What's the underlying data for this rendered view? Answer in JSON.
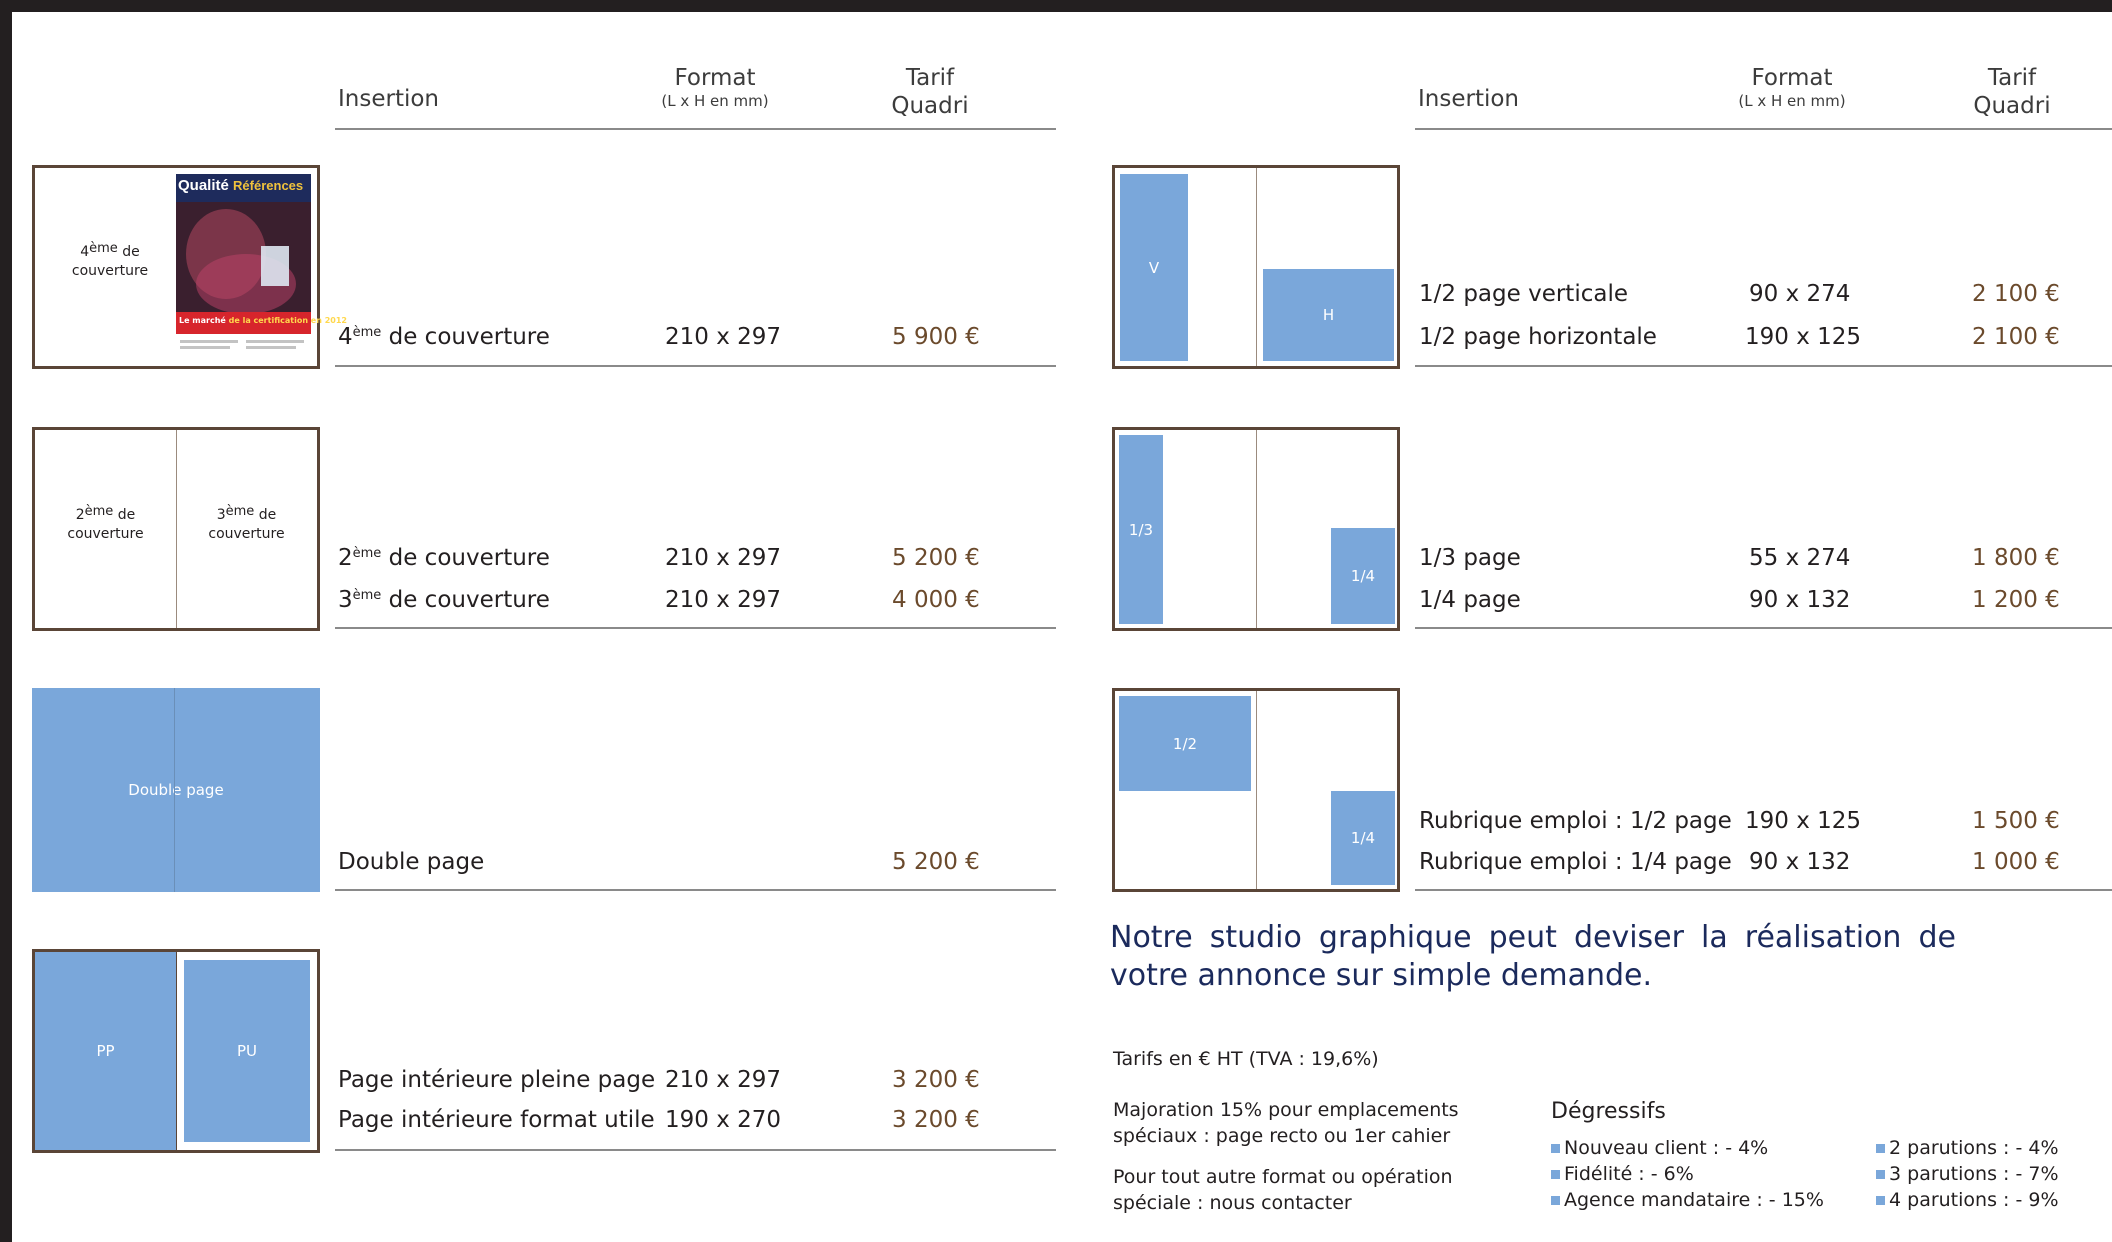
{
  "header_left": {
    "insertion": "Insertion",
    "format": "Format",
    "format_unit": "(L x H en mm)",
    "tarif1": "Tarif",
    "tarif2": "Quadri"
  },
  "header_right": {
    "insertion": "Insertion",
    "format": "Format",
    "format_unit": "(L x H en mm)",
    "tarif1": "Tarif",
    "tarif2": "Quadri"
  },
  "left_rows": {
    "r1": {
      "label_pre": "4",
      "label_sup": "ème",
      "label_post": " de couverture",
      "format": "210 x 297",
      "price": "5 900 €"
    },
    "r2a": {
      "label_pre": "2",
      "label_sup": "ème",
      "label_post": " de couverture",
      "format": "210 x 297",
      "price": "5 200 €"
    },
    "r2b": {
      "label_pre": "3",
      "label_sup": "ème",
      "label_post": " de couverture",
      "format": "210 x 297",
      "price": "4 000 €"
    },
    "r3": {
      "label": "Double page",
      "price": "5 200 €"
    },
    "r4a": {
      "label": "Page intérieure pleine page",
      "format": "210 x 297",
      "price": "3 200 €"
    },
    "r4b": {
      "label": "Page intérieure format utile",
      "format": "190 x 270",
      "price": "3 200 €"
    }
  },
  "right_rows": {
    "r1a": {
      "label": "1/2 page verticale",
      "format": "90 x 274",
      "price": "2 100 €"
    },
    "r1b": {
      "label": "1/2 page horizontale",
      "format": "190 x 125",
      "price": "2 100 €"
    },
    "r2a": {
      "label": "1/3 page",
      "format": "55 x 274",
      "price": "1 800 €"
    },
    "r2b": {
      "label": "1/4 page",
      "format": "90 x 132",
      "price": "1 200 €"
    },
    "r3a": {
      "label": "Rubrique emploi : 1/2 page",
      "format": "190 x 125",
      "price": "1 500 €"
    },
    "r3b": {
      "label": "Rubrique emploi : 1/4 page",
      "format": "90 x 132",
      "price": "1 000 €"
    }
  },
  "thumbs": {
    "cover4_pre": "4",
    "cover4_sup": "ème",
    "cover4_l1": " de",
    "cover4_l2": "couverture",
    "cover2_pre": "2",
    "cover2_sup": "ème",
    "cover2_l1": " de",
    "cover2_l2": "couverture",
    "cover3_pre": "3",
    "cover3_sup": "ème",
    "cover3_l1": " de",
    "cover3_l2": "couverture",
    "double": "Double page",
    "pp": "PP",
    "pu": "PU",
    "v": "V",
    "h": "H",
    "third": "1/3",
    "quarter": "1/4",
    "half": "1/2",
    "quarter2": "1/4"
  },
  "magazine": {
    "brand1": "Qualité",
    "brand2": "Références",
    "headline_a": "Le marché",
    "headline_b": " de la certification en 2012"
  },
  "studio": "Notre studio graphique peut deviser la réalisation de votre annonce sur simple demande.",
  "notes": {
    "tarifs": "Tarifs en € HT (TVA : 19,6%)",
    "majoration_1": "Majoration 15% pour emplacements",
    "majoration_2": "spéciaux : page recto ou 1er cahier",
    "autre_1": "Pour tout autre format ou opération",
    "autre_2": "spéciale : nous contacter"
  },
  "degressifs": {
    "title": "Dégressifs",
    "col1": [
      "Nouveau client : - 4%",
      "Fidélité : - 6%",
      "Agence mandataire : - 15%"
    ],
    "col2": [
      "2 parutions : - 4%",
      "3 parutions : - 7%",
      "4 parutions : - 9%"
    ]
  },
  "colors": {
    "accent_blue": "#7aa7da",
    "price_brown": "#6b4a2c",
    "studio_navy": "#1b2a5c",
    "border_brown": "#5a4537"
  }
}
